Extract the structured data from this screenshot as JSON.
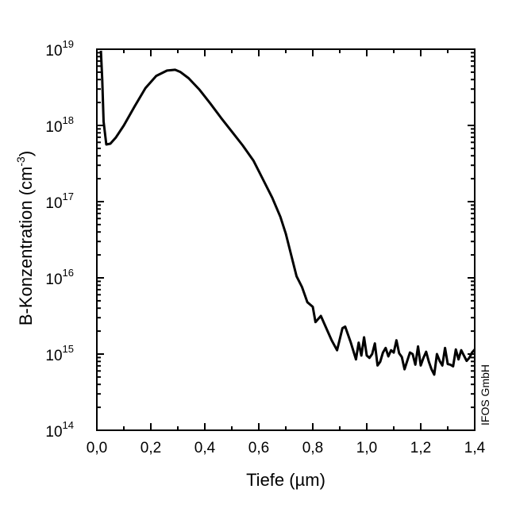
{
  "chart_data": {
    "type": "line",
    "xlabel": "Tiefe (µm)",
    "ylabel": "B-Konzentration (cm",
    "ylabel_sup": "-3",
    "ylabel_close": ")",
    "watermark": "IFOS GmbH",
    "xlim": [
      0,
      1.4
    ],
    "ylim_log10": [
      14,
      19
    ],
    "y_scale": "log",
    "x_ticks": [
      0,
      0.2,
      0.4,
      0.6,
      0.8,
      1.0,
      1.2,
      1.4
    ],
    "x_tick_labels": [
      "0,0",
      "0,2",
      "0,4",
      "0,6",
      "0,8",
      "1,0",
      "1,2",
      "1,4"
    ],
    "y_ticks": [
      {
        "base": "10",
        "exp": "14",
        "log": 14
      },
      {
        "base": "10",
        "exp": "15",
        "log": 15
      },
      {
        "base": "10",
        "exp": "16",
        "log": 16
      },
      {
        "base": "10",
        "exp": "17",
        "log": 17
      },
      {
        "base": "10",
        "exp": "18",
        "log": 18
      },
      {
        "base": "10",
        "exp": "19",
        "log": 19
      }
    ],
    "series": [
      {
        "name": "B-Konzentration",
        "color": "#000000",
        "x": [
          0.015,
          0.02,
          0.025,
          0.03,
          0.035,
          0.05,
          0.07,
          0.1,
          0.14,
          0.18,
          0.22,
          0.26,
          0.29,
          0.31,
          0.34,
          0.38,
          0.42,
          0.46,
          0.5,
          0.54,
          0.58,
          0.6,
          0.62,
          0.65,
          0.68,
          0.7,
          0.72,
          0.74,
          0.76,
          0.78,
          0.8,
          0.81,
          0.83,
          0.85,
          0.87,
          0.89,
          0.91,
          0.92,
          0.94,
          0.96,
          0.97,
          0.98,
          0.99,
          1.0,
          1.01,
          1.02,
          1.03,
          1.04,
          1.05,
          1.06,
          1.07,
          1.08,
          1.09,
          1.1,
          1.11,
          1.12,
          1.13,
          1.14,
          1.15,
          1.16,
          1.17,
          1.18,
          1.19,
          1.2,
          1.21,
          1.22,
          1.23,
          1.24,
          1.25,
          1.26,
          1.27,
          1.28,
          1.29,
          1.3,
          1.31,
          1.32,
          1.33,
          1.34,
          1.35,
          1.36,
          1.37,
          1.38,
          1.39,
          1.4
        ],
        "logy": [
          18.98,
          18.6,
          18.05,
          17.9,
          17.75,
          17.76,
          17.84,
          18.0,
          18.25,
          18.49,
          18.65,
          18.72,
          18.73,
          18.7,
          18.62,
          18.47,
          18.29,
          18.1,
          17.92,
          17.74,
          17.54,
          17.4,
          17.26,
          17.05,
          16.8,
          16.58,
          16.3,
          16.02,
          15.88,
          15.68,
          15.62,
          15.42,
          15.5,
          15.34,
          15.18,
          15.05,
          15.34,
          15.36,
          15.16,
          14.93,
          15.15,
          14.98,
          15.22,
          14.98,
          14.95,
          15.0,
          15.14,
          14.85,
          14.9,
          15.02,
          15.08,
          14.97,
          15.05,
          15.02,
          15.18,
          15.01,
          14.96,
          14.8,
          14.91,
          15.02,
          15.0,
          14.86,
          15.1,
          14.85,
          14.95,
          15.03,
          14.9,
          14.8,
          14.73,
          15.0,
          14.91,
          14.85,
          15.08,
          14.87,
          14.86,
          14.84,
          15.06,
          14.93,
          15.05,
          14.98,
          14.91,
          14.95,
          15.02,
          15.06
        ]
      }
    ]
  }
}
